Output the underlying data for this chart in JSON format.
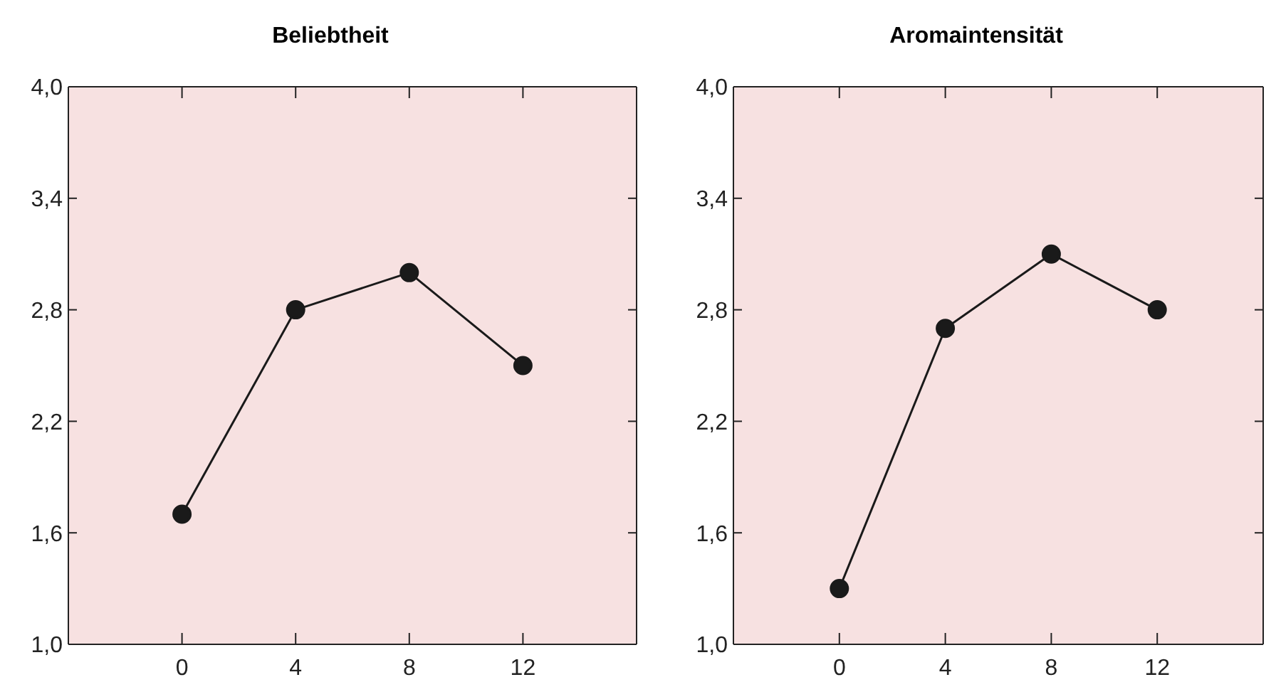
{
  "chart_data": [
    {
      "type": "line",
      "title": "Beliebtheit",
      "x": [
        0,
        4,
        8,
        12
      ],
      "xlim": [
        -4,
        16
      ],
      "xticks": [
        0,
        4,
        8,
        12
      ],
      "ylim": [
        1,
        4
      ],
      "yticks": [
        {
          "value": 1,
          "label": "1,0"
        },
        {
          "value": 1.6,
          "label": "1,6"
        },
        {
          "value": 2.2,
          "label": "2,2"
        },
        {
          "value": 2.8,
          "label": "2,8"
        },
        {
          "value": 3.4,
          "label": "3,4"
        },
        {
          "value": 4,
          "label": "4,0"
        }
      ],
      "marker": "circle",
      "series": [
        {
          "color": "#1a1a1a",
          "values": [
            1.7,
            2.8,
            3.0,
            2.5
          ]
        }
      ]
    },
    {
      "type": "line",
      "title": "Aromaintensität",
      "x": [
        0,
        4,
        8,
        12
      ],
      "xlim": [
        -4,
        16
      ],
      "xticks": [
        0,
        4,
        8,
        12
      ],
      "ylim": [
        1,
        4
      ],
      "yticks": [
        {
          "value": 1,
          "label": "1,0"
        },
        {
          "value": 1.6,
          "label": "1,6"
        },
        {
          "value": 2.2,
          "label": "2,2"
        },
        {
          "value": 2.8,
          "label": "2,8"
        },
        {
          "value": 3.4,
          "label": "3,4"
        },
        {
          "value": 4,
          "label": "4,0"
        }
      ],
      "marker": "circle",
      "series": [
        {
          "color": "#1a1a1a",
          "values": [
            1.3,
            2.7,
            3.1,
            2.8
          ]
        }
      ]
    }
  ]
}
